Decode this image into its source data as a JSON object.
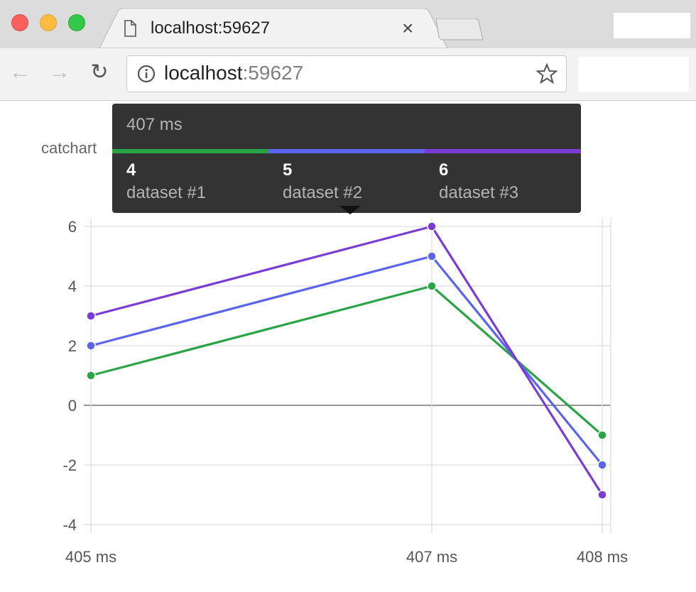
{
  "browser": {
    "tab_title": "localhost:59627",
    "url_host": "localhost",
    "url_port": ":59627"
  },
  "tooltip": {
    "title": "407 ms",
    "items": [
      {
        "value": "4",
        "name": "dataset #1",
        "color": "#2aa546"
      },
      {
        "value": "5",
        "name": "dataset #2",
        "color": "#5a64ef"
      },
      {
        "value": "6",
        "name": "dataset #3",
        "color": "#7b3cd6"
      }
    ]
  },
  "chart_data": {
    "type": "line",
    "title": "catchart",
    "categories": [
      "405 ms",
      "407 ms",
      "408 ms"
    ],
    "series": [
      {
        "name": "dataset #1",
        "values": [
          1,
          4,
          -1
        ],
        "color": "#2aa546"
      },
      {
        "name": "dataset #2",
        "values": [
          2,
          5,
          -2
        ],
        "color": "#5a64ef"
      },
      {
        "name": "dataset #3",
        "values": [
          3,
          6,
          -3
        ],
        "color": "#7b3cd6"
      }
    ],
    "yticks": [
      "6",
      "4",
      "2",
      "0",
      "-2",
      "-4"
    ],
    "ylim": [
      -4,
      6
    ],
    "grid": true
  }
}
